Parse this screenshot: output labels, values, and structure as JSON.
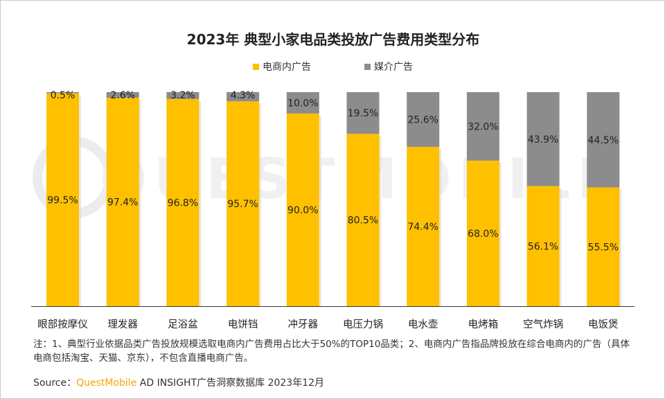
{
  "page": {
    "footnote": "注：1、典型行业依据品类广告投放规模选取电商内广告费用占比大于50%的TOP10品类；2、电商内广告指品牌投放在综合电商内的广告（具体电商包括淘宝、天猫、京东），不包含直播电商广告。",
    "source_label": "Source：",
    "source_brand": "QuestMobile",
    "source_text": " AD INSIGHT广告洞察数据库 2023年12月",
    "watermark": "QUESTMOBILE"
  },
  "colors": {
    "ecommerce": "#FFC000",
    "media": "#8C8C8C",
    "axis": "#333333"
  },
  "chart_data": {
    "type": "bar",
    "stacked": true,
    "percent": true,
    "title": "2023年 典型小家电品类投放广告费用类型分布",
    "categories": [
      "眼部按摩仪",
      "理发器",
      "足浴盆",
      "电饼铛",
      "冲牙器",
      "电压力锅",
      "电水壶",
      "电烤箱",
      "空气炸锅",
      "电饭煲"
    ],
    "series": [
      {
        "name": "电商内广告",
        "values": [
          99.5,
          97.4,
          96.8,
          95.7,
          90.0,
          80.5,
          74.4,
          68.0,
          56.1,
          55.5
        ]
      },
      {
        "name": "媒介广告",
        "values": [
          0.5,
          2.6,
          3.2,
          4.3,
          10.0,
          19.5,
          25.6,
          32.0,
          43.9,
          44.5
        ]
      }
    ],
    "value_labels": [
      [
        "99.5%",
        "97.4%",
        "96.8%",
        "95.7%",
        "90.0%",
        "80.5%",
        "74.4%",
        "68.0%",
        "56.1%",
        "55.5%"
      ],
      [
        "0.5%",
        "2.6%",
        "3.2%",
        "4.3%",
        "10.0%",
        "19.5%",
        "25.6%",
        "32.0%",
        "43.9%",
        "44.5%"
      ]
    ],
    "ylim": [
      0,
      100
    ],
    "legend_position": "top-center",
    "xlabel": "",
    "ylabel": ""
  }
}
